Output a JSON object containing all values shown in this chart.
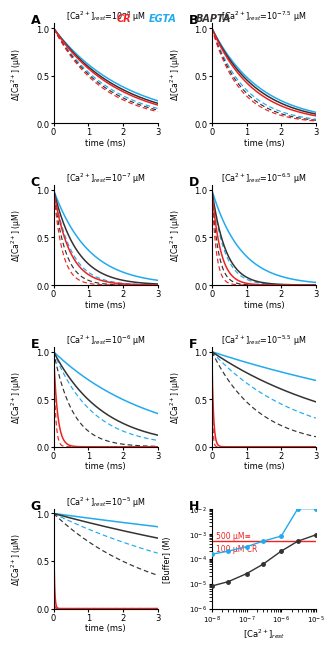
{
  "panel_labels": [
    "A",
    "B",
    "C",
    "D",
    "E",
    "F",
    "G",
    "H"
  ],
  "panel_title_exps": [
    "-8",
    "-7.5",
    "-7",
    "-6.5",
    "-6",
    "-5.5",
    "-5",
    ""
  ],
  "xlabel": "time (ms)",
  "ylabel": "Δ[Ca²⁺] (μM)",
  "xlim": [
    0,
    3
  ],
  "ylim": [
    0.0,
    1.0
  ],
  "time_points": 300,
  "decay_params": {
    "A": {
      "CR_solid": 0.55,
      "CR_dashed": 0.7,
      "EGTA_solid": 0.48,
      "EGTA_dashed": 0.62,
      "BAPTA_solid": 0.52,
      "BAPTA_dashed": 0.66
    },
    "B": {
      "CR_solid": 0.85,
      "CR_dashed": 1.25,
      "EGTA_solid": 0.72,
      "EGTA_dashed": 1.05,
      "BAPTA_solid": 0.78,
      "BAPTA_dashed": 1.15
    },
    "C": {
      "CR_solid": 2.2,
      "CR_dashed": 4.0,
      "EGTA_solid": 1.0,
      "EGTA_dashed": 2.0,
      "BAPTA_solid": 1.5,
      "BAPTA_dashed": 3.0
    },
    "D": {
      "CR_solid": 4.0,
      "CR_dashed": 8.0,
      "EGTA_solid": 1.2,
      "EGTA_dashed": 2.8,
      "BAPTA_solid": 2.5,
      "BAPTA_dashed": 5.5
    },
    "E": {
      "CR_solid": 9.0,
      "CR_dashed": 18.0,
      "EGTA_solid": 0.35,
      "EGTA_dashed": 0.9,
      "BAPTA_solid": 0.7,
      "BAPTA_dashed": 1.8
    },
    "F": {
      "CR_solid": 22.0,
      "CR_dashed": 45.0,
      "EGTA_solid": 0.12,
      "EGTA_dashed": 0.4,
      "BAPTA_solid": 0.25,
      "BAPTA_dashed": 0.75
    },
    "G": {
      "CR_solid": 45.0,
      "CR_dashed": 90.0,
      "EGTA_solid": 0.05,
      "EGTA_dashed": 0.18,
      "BAPTA_solid": 0.1,
      "BAPTA_dashed": 0.35
    }
  },
  "panel_H": {
    "x_egta": [
      1e-08,
      3e-08,
      1e-07,
      3e-07,
      1e-06,
      3e-06,
      1e-05
    ],
    "y_egta": [
      0.00015,
      0.0002,
      0.0003,
      0.0005,
      0.0008,
      0.01,
      0.01
    ],
    "x_bapta": [
      1e-08,
      3e-08,
      1e-07,
      3e-07,
      1e-06,
      3e-06,
      1e-05
    ],
    "y_bapta": [
      8e-06,
      1.2e-05,
      2.5e-05,
      6e-05,
      0.0002,
      0.0005,
      0.0009
    ],
    "cr_line_y": 0.0005,
    "ylim_log": [
      -6,
      -2
    ],
    "xlim": [
      1e-08,
      1e-05
    ],
    "xlabel": "[Ca²⁺]ₚₑₛₜ",
    "ylabel": "[Buffer] (M)",
    "annot_500": "500 μM≡",
    "annot_100": "100 μM CR"
  },
  "cr_color": "#EE2222",
  "egta_color": "#22AAEE",
  "bapta_color": "#333333",
  "background": "#FFFFFF"
}
